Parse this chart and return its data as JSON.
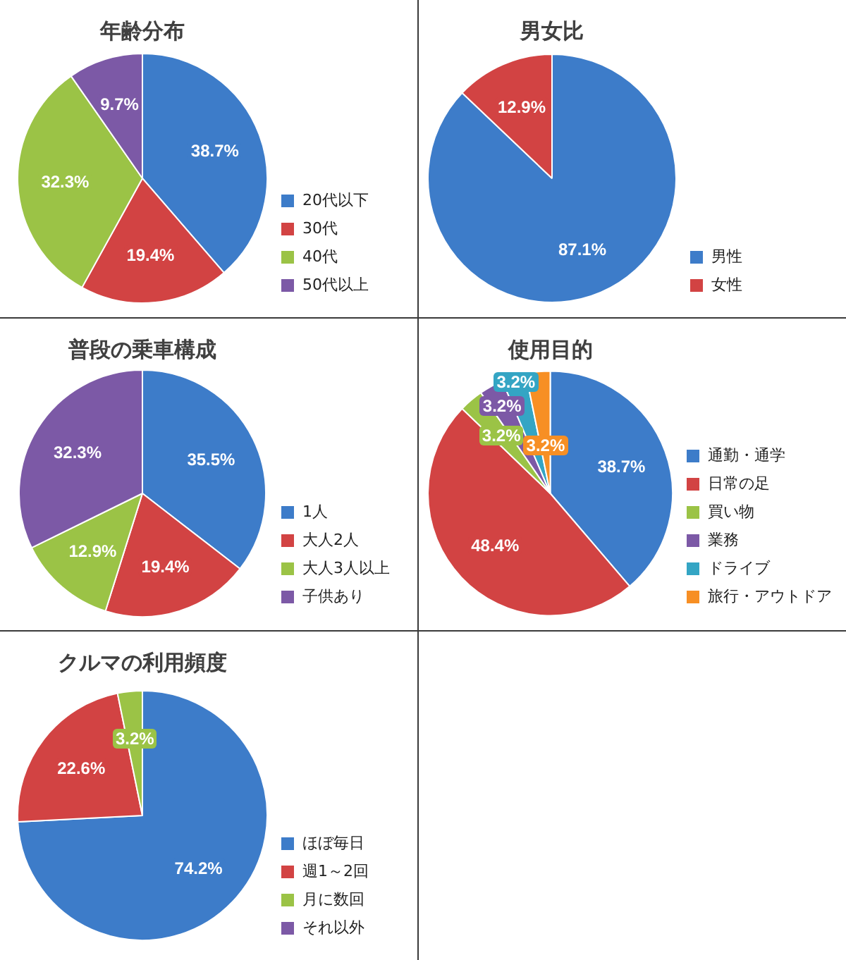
{
  "chart_data": [
    {
      "type": "pie",
      "title": "年齢分布",
      "categories": [
        "20代以下",
        "30代",
        "40代",
        "50代以上"
      ],
      "values": [
        38.7,
        19.4,
        32.3,
        9.7
      ],
      "colors": [
        "#3d7cc9",
        "#d24343",
        "#9bc346",
        "#7c59a6"
      ],
      "value_labels": [
        "38.7%",
        "19.4%",
        "32.3%",
        "9.7%"
      ],
      "legend": "right"
    },
    {
      "type": "pie",
      "title": "男女比",
      "categories": [
        "男性",
        "女性"
      ],
      "values": [
        87.1,
        12.9
      ],
      "colors": [
        "#3d7cc9",
        "#d24343"
      ],
      "value_labels": [
        "87.1%",
        "12.9%"
      ],
      "legend": "right"
    },
    {
      "type": "pie",
      "title": "普段の乗車構成",
      "categories": [
        "1人",
        "大人2人",
        "大人3人以上",
        "子供あり"
      ],
      "values": [
        35.5,
        19.4,
        12.9,
        32.3
      ],
      "colors": [
        "#3d7cc9",
        "#d24343",
        "#9bc346",
        "#7c59a6"
      ],
      "value_labels": [
        "35.5%",
        "19.4%",
        "12.9%",
        "32.3%"
      ],
      "legend": "right"
    },
    {
      "type": "pie",
      "title": "使用目的",
      "categories": [
        "通勤・通学",
        "日常の足",
        "買い物",
        "業務",
        "ドライブ",
        "旅行・アウトドア"
      ],
      "values": [
        38.7,
        48.4,
        3.2,
        3.2,
        3.2,
        3.2
      ],
      "colors": [
        "#3d7cc9",
        "#d24343",
        "#9bc346",
        "#7c59a6",
        "#34a5c4",
        "#f78f24"
      ],
      "value_labels": [
        "38.7%",
        "48.4%",
        "3.2%",
        "3.2%",
        "3.2%",
        "3.2%"
      ],
      "legend": "right"
    },
    {
      "type": "pie",
      "title": "クルマの利用頻度",
      "categories": [
        "ほぼ毎日",
        "週1～2回",
        "月に数回",
        "それ以外"
      ],
      "values": [
        74.2,
        22.6,
        3.2,
        0
      ],
      "colors": [
        "#3d7cc9",
        "#d24343",
        "#9bc346",
        "#7c59a6"
      ],
      "value_labels": [
        "74.2%",
        "22.6%",
        "3.2%",
        null
      ],
      "legend": "right"
    }
  ]
}
